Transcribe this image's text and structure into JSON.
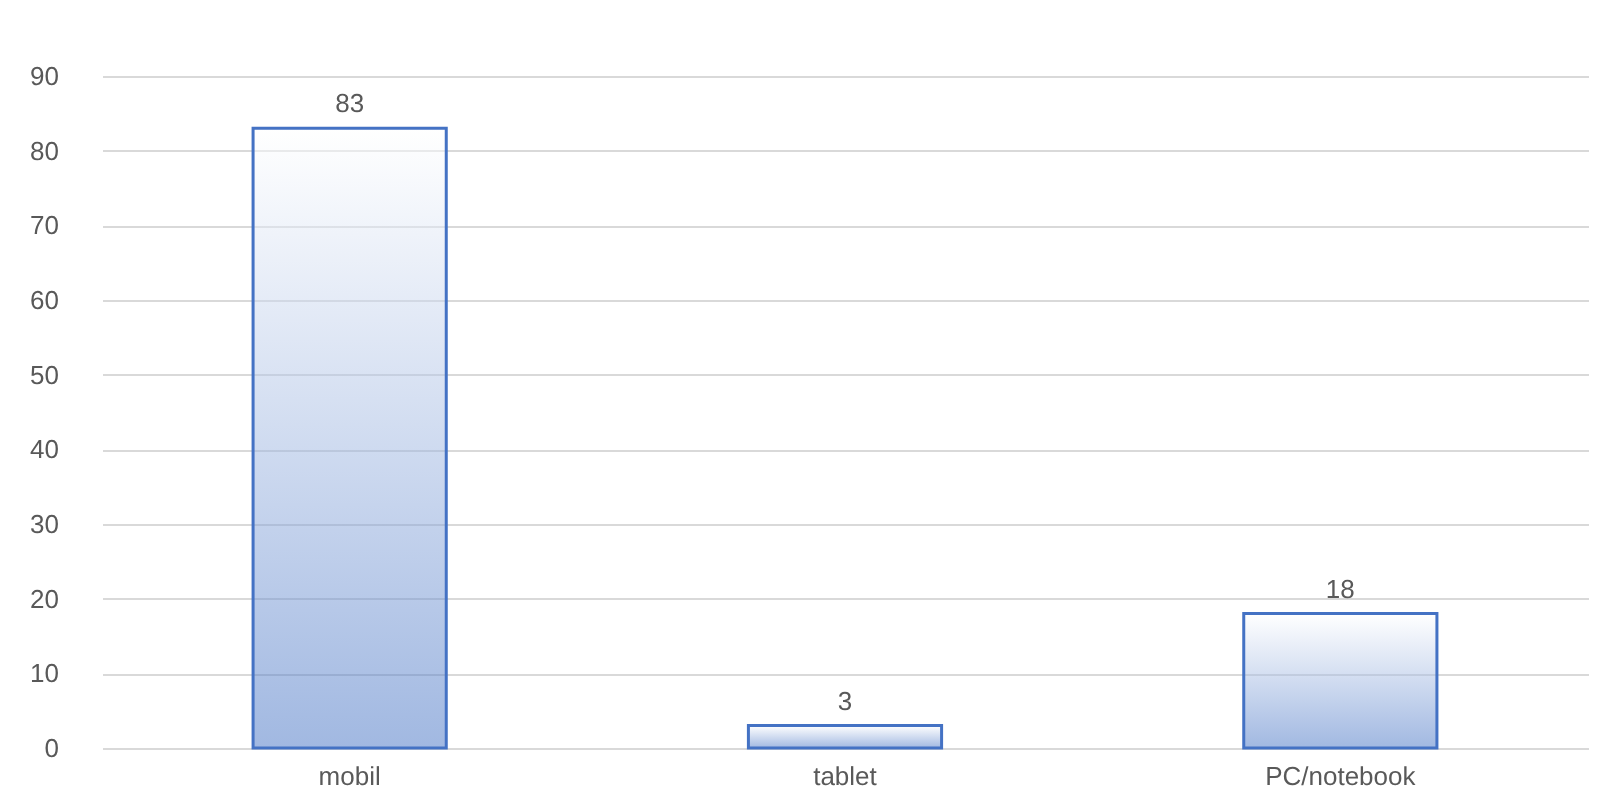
{
  "chart_data": {
    "type": "bar",
    "categories": [
      "mobil",
      "tablet",
      "PC/notebook"
    ],
    "values": [
      83,
      3,
      18
    ],
    "color": "#4472c4",
    "ylim": [
      0,
      90
    ],
    "yticks": [
      0,
      10,
      20,
      30,
      40,
      50,
      60,
      70,
      80,
      90
    ],
    "grid": "y",
    "data_labels": true
  }
}
